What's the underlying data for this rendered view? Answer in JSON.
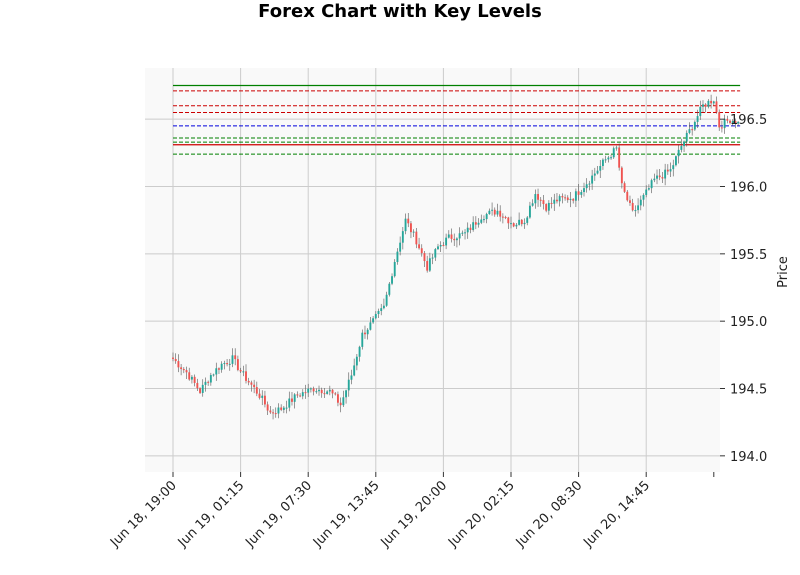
{
  "chart_data": {
    "type": "candlestick",
    "title": "Forex Chart with Key Levels",
    "xlabel": "",
    "ylabel": "Price",
    "ylim": [
      193.88,
      196.88
    ],
    "y_ticks": [
      194.0,
      194.5,
      195.0,
      195.5,
      196.0,
      196.5
    ],
    "y_tick_labels": [
      "194.0",
      "194.5",
      "195.0",
      "195.5",
      "196.0",
      "196.5"
    ],
    "x_tick_labels": [
      "Jun 18, 19:00",
      "Jun 19, 01:15",
      "Jun 19, 07:30",
      "Jun 19, 13:45",
      "Jun 19, 20:00",
      "Jun 20, 02:15",
      "Jun 20, 08:30",
      "Jun 20, 14:45"
    ],
    "grid": true,
    "up_color": "#26a69a",
    "down_color": "#ef5350",
    "bar_interval_minutes": 15,
    "first_bar_time": "Jun 18, 19:00",
    "y_axis_side": "right",
    "key_levels": [
      {
        "price": 196.75,
        "color": "#008000",
        "style": "solid"
      },
      {
        "price": 196.71,
        "color": "#cc0000",
        "style": "dashed"
      },
      {
        "price": 196.6,
        "color": "#cc0000",
        "style": "dashed"
      },
      {
        "price": 196.55,
        "color": "#cc0000",
        "style": "dashed"
      },
      {
        "price": 196.45,
        "color": "#0000dd",
        "style": "dashed"
      },
      {
        "price": 196.36,
        "color": "#008000",
        "style": "dashed"
      },
      {
        "price": 196.33,
        "color": "#008000",
        "style": "dashed"
      },
      {
        "price": 196.31,
        "color": "#cc0000",
        "style": "solid"
      },
      {
        "price": 196.24,
        "color": "#008000",
        "style": "dashed"
      }
    ],
    "close_anchors": [
      [
        0,
        194.72
      ],
      [
        5,
        194.62
      ],
      [
        10,
        194.48
      ],
      [
        14,
        194.6
      ],
      [
        18,
        194.68
      ],
      [
        22,
        194.72
      ],
      [
        26,
        194.6
      ],
      [
        32,
        194.45
      ],
      [
        36,
        194.32
      ],
      [
        40,
        194.35
      ],
      [
        46,
        194.45
      ],
      [
        52,
        194.5
      ],
      [
        58,
        194.48
      ],
      [
        62,
        194.38
      ],
      [
        66,
        194.6
      ],
      [
        70,
        194.9
      ],
      [
        74,
        195.0
      ],
      [
        78,
        195.1
      ],
      [
        82,
        195.45
      ],
      [
        86,
        195.75
      ],
      [
        90,
        195.6
      ],
      [
        94,
        195.4
      ],
      [
        98,
        195.55
      ],
      [
        102,
        195.62
      ],
      [
        108,
        195.65
      ],
      [
        114,
        195.78
      ],
      [
        120,
        195.82
      ],
      [
        126,
        195.72
      ],
      [
        130,
        195.75
      ],
      [
        134,
        195.95
      ],
      [
        138,
        195.85
      ],
      [
        142,
        195.9
      ],
      [
        148,
        195.92
      ],
      [
        154,
        196.05
      ],
      [
        160,
        196.2
      ],
      [
        164,
        196.28
      ],
      [
        166,
        196.0
      ],
      [
        170,
        195.8
      ],
      [
        174,
        195.92
      ],
      [
        178,
        196.05
      ],
      [
        184,
        196.12
      ],
      [
        188,
        196.3
      ],
      [
        192,
        196.45
      ],
      [
        196,
        196.6
      ],
      [
        200,
        196.65
      ],
      [
        202,
        196.45
      ],
      [
        206,
        196.5
      ],
      [
        209,
        196.48
      ]
    ]
  }
}
